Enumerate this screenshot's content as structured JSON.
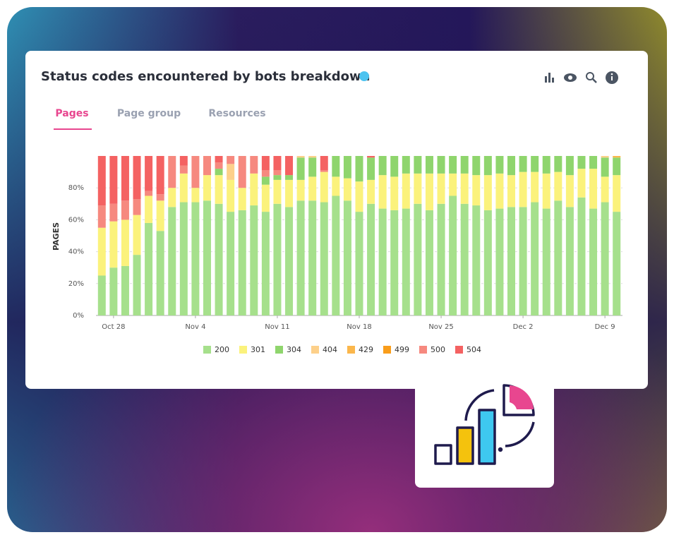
{
  "header": {
    "title": "Status codes encountered by bots breakdown",
    "tabs": [
      "Pages",
      "Page group",
      "Resources"
    ]
  },
  "chart_data": {
    "type": "stacked-bar",
    "y_label": "PAGES",
    "categories": [
      null,
      "Oct 28",
      null,
      null,
      null,
      null,
      null,
      null,
      "Nov 4",
      null,
      null,
      null,
      null,
      null,
      null,
      "Nov 11",
      null,
      null,
      null,
      null,
      null,
      null,
      "Nov 18",
      null,
      null,
      null,
      null,
      null,
      null,
      "Nov 25",
      null,
      null,
      null,
      null,
      null,
      null,
      "Dec 2",
      null,
      null,
      null,
      null,
      null,
      null,
      "Dec 9",
      null
    ],
    "series": [
      {
        "name": "200",
        "color": "#a6e08c",
        "values": [
          25,
          30,
          31,
          38,
          58,
          53,
          68,
          71,
          71,
          72,
          70,
          65,
          66,
          69,
          65,
          70,
          68,
          72,
          72,
          71,
          75,
          72,
          65,
          70,
          67,
          66,
          67,
          70,
          66,
          70,
          75,
          70,
          69,
          66,
          67,
          68,
          68,
          71,
          67,
          72,
          68,
          74,
          67,
          71,
          65
        ]
      },
      {
        "name": "301",
        "color": "#fbf27c",
        "values": [
          30,
          29,
          29,
          25,
          17,
          19,
          12,
          18,
          9,
          16,
          18,
          20,
          14,
          20,
          17,
          15,
          17,
          13,
          15,
          19,
          12,
          14,
          19,
          15,
          21,
          21,
          22,
          19,
          23,
          19,
          14,
          19,
          19,
          22,
          22,
          20,
          22,
          19,
          22,
          18,
          20,
          18,
          25,
          16,
          23
        ]
      },
      {
        "name": "304",
        "color": "#8fd56d",
        "values": [
          0,
          0,
          0,
          0,
          0,
          0,
          0,
          0,
          0,
          0,
          4,
          0,
          0,
          0,
          5,
          3,
          3,
          14,
          12,
          0,
          13,
          14,
          16,
          14,
          12,
          13,
          11,
          11,
          11,
          11,
          11,
          11,
          12,
          12,
          11,
          12,
          10,
          10,
          11,
          10,
          12,
          8,
          8,
          12,
          11
        ]
      },
      {
        "name": "404",
        "color": "#fdd08a",
        "values": [
          0,
          0,
          0,
          0,
          0,
          0,
          0,
          0,
          0,
          0,
          0,
          10,
          0,
          0,
          0,
          0,
          0,
          1,
          1,
          0,
          0,
          0,
          0,
          0,
          0,
          0,
          0,
          0,
          0,
          0,
          0,
          0,
          0,
          0,
          0,
          0,
          0,
          0,
          0,
          0,
          0,
          0,
          0,
          1,
          0
        ]
      },
      {
        "name": "429",
        "color": "#fbb74c",
        "values": [
          0,
          0,
          0,
          0,
          0,
          0,
          0,
          0,
          0,
          0,
          0,
          0,
          0,
          0,
          0,
          0,
          0,
          0,
          0,
          0,
          0,
          0,
          0,
          0,
          0,
          0,
          0,
          0,
          0,
          0,
          0,
          0,
          0,
          0,
          0,
          0,
          0,
          0,
          0,
          0,
          0,
          0,
          0,
          0,
          1
        ]
      },
      {
        "name": "499",
        "color": "#f99d1a",
        "values": [
          0,
          0,
          0,
          0,
          0,
          0,
          0,
          0,
          0,
          0,
          0,
          0,
          0,
          0,
          0,
          0,
          0,
          0,
          0,
          0,
          0,
          0,
          0,
          0,
          0,
          0,
          0,
          0,
          0,
          0,
          0,
          0,
          0,
          0,
          0,
          0,
          0,
          0,
          0,
          0,
          0,
          0,
          0,
          0,
          0
        ]
      },
      {
        "name": "500",
        "color": "#f6897f",
        "values": [
          14,
          11,
          12,
          10,
          3,
          4,
          20,
          5,
          20,
          12,
          4,
          5,
          20,
          11,
          4,
          3,
          0,
          0,
          0,
          1,
          0,
          0,
          0,
          0,
          0,
          0,
          0,
          0,
          0,
          0,
          0,
          0,
          0,
          0,
          0,
          0,
          0,
          0,
          0,
          0,
          0,
          0,
          0,
          0,
          0
        ]
      },
      {
        "name": "504",
        "color": "#f46262",
        "values": [
          31,
          30,
          28,
          27,
          22,
          24,
          0,
          6,
          0,
          0,
          4,
          0,
          0,
          0,
          9,
          9,
          12,
          0,
          0,
          9,
          0,
          0,
          0,
          1,
          0,
          0,
          0,
          0,
          0,
          0,
          0,
          0,
          0,
          0,
          0,
          0,
          0,
          0,
          0,
          0,
          0,
          0,
          0,
          0,
          0
        ]
      }
    ],
    "ylim": [
      0,
      100
    ],
    "yticks": [
      {
        "value": 0,
        "label": "0%"
      },
      {
        "value": 20,
        "label": "20%"
      },
      {
        "value": 40,
        "label": "40%"
      },
      {
        "value": 60,
        "label": "60%"
      },
      {
        "value": 80,
        "label": "80%"
      }
    ],
    "grid": true
  }
}
